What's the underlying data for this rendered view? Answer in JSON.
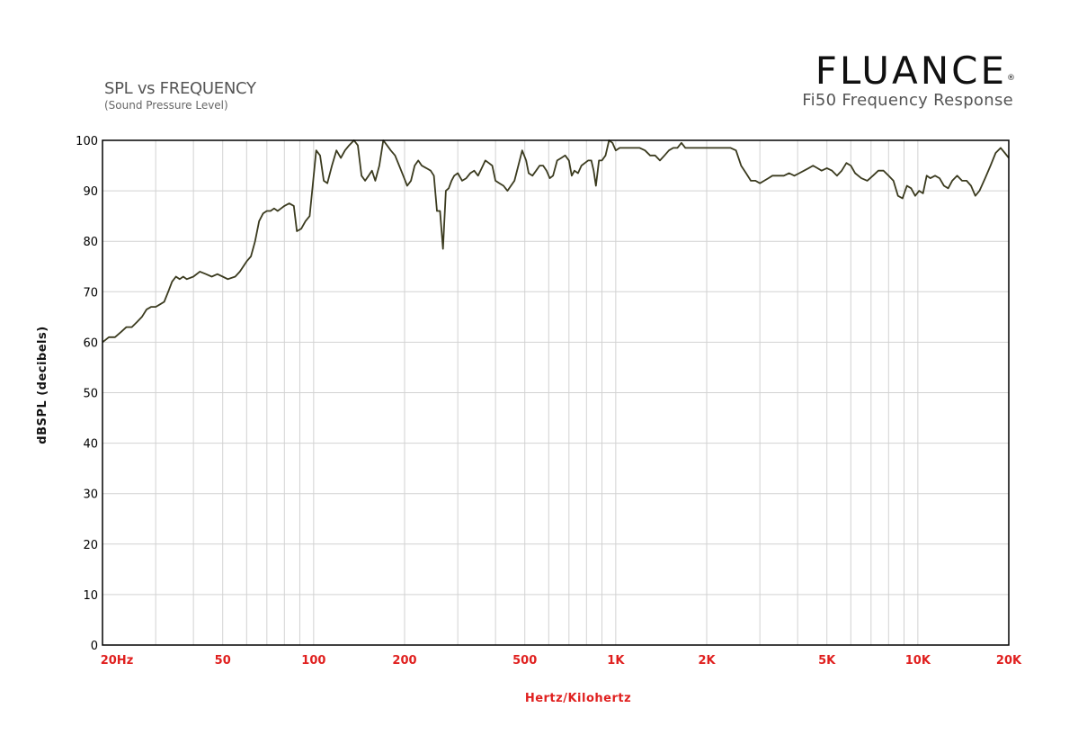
{
  "header": {
    "brand": "FLUANCE",
    "brand_mark": "®",
    "brand_subtitle": "Fi50 Frequency Response"
  },
  "chart_data": {
    "type": "line",
    "title": "SPL vs FREQUENCY",
    "subtitle": "(Sound Pressure Level)",
    "xlabel": "Hertz/Kilohertz",
    "ylabel": "dBSPL (decibels)",
    "x_scale": "log",
    "xlim": [
      20,
      20000
    ],
    "ylim": [
      0,
      100
    ],
    "grid": true,
    "x_ticks": [
      {
        "value": 20,
        "label": "20Hz"
      },
      {
        "value": 50,
        "label": "50"
      },
      {
        "value": 100,
        "label": "100"
      },
      {
        "value": 200,
        "label": "200"
      },
      {
        "value": 500,
        "label": "500"
      },
      {
        "value": 1000,
        "label": "1K"
      },
      {
        "value": 2000,
        "label": "2K"
      },
      {
        "value": 5000,
        "label": "5K"
      },
      {
        "value": 10000,
        "label": "10K"
      },
      {
        "value": 20000,
        "label": "20K"
      }
    ],
    "y_ticks": [
      0,
      10,
      20,
      30,
      40,
      50,
      60,
      70,
      80,
      90,
      100
    ],
    "series": [
      {
        "color": "#3b3b1f",
        "points": [
          [
            20,
            60
          ],
          [
            21,
            61
          ],
          [
            22,
            61
          ],
          [
            23,
            62
          ],
          [
            24,
            63
          ],
          [
            25,
            63
          ],
          [
            26,
            64
          ],
          [
            27,
            65
          ],
          [
            28,
            66.5
          ],
          [
            29,
            67
          ],
          [
            30,
            67
          ],
          [
            31,
            67.5
          ],
          [
            32,
            68
          ],
          [
            33,
            70
          ],
          [
            34,
            72
          ],
          [
            35,
            73
          ],
          [
            36,
            72.5
          ],
          [
            37,
            73
          ],
          [
            38,
            72.5
          ],
          [
            40,
            73
          ],
          [
            42,
            74
          ],
          [
            44,
            73.5
          ],
          [
            46,
            73
          ],
          [
            48,
            73.5
          ],
          [
            50,
            73
          ],
          [
            52,
            72.5
          ],
          [
            55,
            73
          ],
          [
            57,
            74
          ],
          [
            60,
            76
          ],
          [
            62,
            77
          ],
          [
            64,
            80
          ],
          [
            66,
            84
          ],
          [
            68,
            85.5
          ],
          [
            70,
            86
          ],
          [
            72,
            86
          ],
          [
            74,
            86.5
          ],
          [
            76,
            86
          ],
          [
            78,
            86.5
          ],
          [
            80,
            87
          ],
          [
            83,
            87.5
          ],
          [
            86,
            87
          ],
          [
            88,
            82
          ],
          [
            91,
            82.5
          ],
          [
            94,
            84
          ],
          [
            97,
            85
          ],
          [
            100,
            93
          ],
          [
            102,
            98
          ],
          [
            105,
            97
          ],
          [
            108,
            92
          ],
          [
            111,
            91.5
          ],
          [
            115,
            95
          ],
          [
            119,
            98
          ],
          [
            123,
            96.5
          ],
          [
            127,
            98
          ],
          [
            131,
            99
          ],
          [
            136,
            100
          ],
          [
            140,
            99
          ],
          [
            144,
            93
          ],
          [
            148,
            92
          ],
          [
            152,
            93
          ],
          [
            156,
            94
          ],
          [
            160,
            92
          ],
          [
            165,
            95
          ],
          [
            170,
            100
          ],
          [
            175,
            99
          ],
          [
            180,
            98
          ],
          [
            186,
            97
          ],
          [
            192,
            95
          ],
          [
            198,
            93
          ],
          [
            204,
            91
          ],
          [
            210,
            92
          ],
          [
            216,
            95
          ],
          [
            222,
            96
          ],
          [
            228,
            95
          ],
          [
            236,
            94.5
          ],
          [
            244,
            94
          ],
          [
            250,
            93
          ],
          [
            256,
            86
          ],
          [
            262,
            86
          ],
          [
            268,
            78.5
          ],
          [
            274,
            90
          ],
          [
            280,
            90.5
          ],
          [
            286,
            92
          ],
          [
            292,
            93
          ],
          [
            300,
            93.5
          ],
          [
            310,
            92
          ],
          [
            320,
            92.5
          ],
          [
            330,
            93.5
          ],
          [
            340,
            94
          ],
          [
            350,
            93
          ],
          [
            360,
            94.5
          ],
          [
            370,
            96
          ],
          [
            380,
            95.5
          ],
          [
            390,
            95
          ],
          [
            400,
            92
          ],
          [
            412,
            91.5
          ],
          [
            425,
            91
          ],
          [
            438,
            90
          ],
          [
            450,
            91
          ],
          [
            462,
            92
          ],
          [
            476,
            95
          ],
          [
            490,
            98
          ],
          [
            505,
            96
          ],
          [
            515,
            93.5
          ],
          [
            530,
            93
          ],
          [
            545,
            94
          ],
          [
            560,
            95
          ],
          [
            575,
            95
          ],
          [
            590,
            94
          ],
          [
            605,
            92.5
          ],
          [
            620,
            93
          ],
          [
            640,
            96
          ],
          [
            660,
            96.5
          ],
          [
            680,
            97
          ],
          [
            700,
            96
          ],
          [
            715,
            93
          ],
          [
            730,
            94
          ],
          [
            750,
            93.5
          ],
          [
            770,
            95
          ],
          [
            790,
            95.5
          ],
          [
            810,
            96
          ],
          [
            830,
            96
          ],
          [
            845,
            94
          ],
          [
            860,
            91
          ],
          [
            880,
            96
          ],
          [
            900,
            96
          ],
          [
            925,
            97
          ],
          [
            950,
            100
          ],
          [
            975,
            99.5
          ],
          [
            1000,
            98
          ],
          [
            1030,
            98.5
          ],
          [
            1060,
            98.5
          ],
          [
            1100,
            98.5
          ],
          [
            1150,
            98.5
          ],
          [
            1200,
            98.5
          ],
          [
            1250,
            98
          ],
          [
            1300,
            97
          ],
          [
            1350,
            97
          ],
          [
            1400,
            96
          ],
          [
            1450,
            97
          ],
          [
            1500,
            98
          ],
          [
            1550,
            98.5
          ],
          [
            1600,
            98.5
          ],
          [
            1650,
            99.5
          ],
          [
            1700,
            98.5
          ],
          [
            1750,
            98.5
          ],
          [
            1800,
            98.5
          ],
          [
            1900,
            98.5
          ],
          [
            2000,
            98.5
          ],
          [
            2100,
            98.5
          ],
          [
            2200,
            98.5
          ],
          [
            2300,
            98.5
          ],
          [
            2400,
            98.5
          ],
          [
            2500,
            98
          ],
          [
            2600,
            95
          ],
          [
            2700,
            93.5
          ],
          [
            2800,
            92
          ],
          [
            2900,
            92
          ],
          [
            3000,
            91.5
          ],
          [
            3100,
            92
          ],
          [
            3200,
            92.5
          ],
          [
            3300,
            93
          ],
          [
            3450,
            93
          ],
          [
            3600,
            93
          ],
          [
            3750,
            93.5
          ],
          [
            3900,
            93
          ],
          [
            4050,
            93.5
          ],
          [
            4200,
            94
          ],
          [
            4350,
            94.5
          ],
          [
            4500,
            95
          ],
          [
            4650,
            94.5
          ],
          [
            4800,
            94
          ],
          [
            5000,
            94.5
          ],
          [
            5200,
            94
          ],
          [
            5400,
            93
          ],
          [
            5600,
            94
          ],
          [
            5800,
            95.5
          ],
          [
            6000,
            95
          ],
          [
            6200,
            93.5
          ],
          [
            6500,
            92.5
          ],
          [
            6800,
            92
          ],
          [
            7100,
            93
          ],
          [
            7400,
            94
          ],
          [
            7700,
            94
          ],
          [
            8000,
            93
          ],
          [
            8300,
            92
          ],
          [
            8600,
            89
          ],
          [
            8900,
            88.5
          ],
          [
            9200,
            91
          ],
          [
            9500,
            90.5
          ],
          [
            9800,
            89
          ],
          [
            10100,
            90
          ],
          [
            10400,
            89.5
          ],
          [
            10700,
            93
          ],
          [
            11000,
            92.5
          ],
          [
            11400,
            93
          ],
          [
            11800,
            92.5
          ],
          [
            12200,
            91
          ],
          [
            12600,
            90.5
          ],
          [
            13000,
            92
          ],
          [
            13500,
            93
          ],
          [
            14000,
            92
          ],
          [
            14500,
            92
          ],
          [
            15000,
            91
          ],
          [
            15500,
            89
          ],
          [
            16000,
            90
          ],
          [
            16700,
            92.5
          ],
          [
            17400,
            95
          ],
          [
            18100,
            97.5
          ],
          [
            18800,
            98.5
          ],
          [
            19400,
            97.5
          ],
          [
            20000,
            96.5
          ]
        ]
      }
    ]
  }
}
